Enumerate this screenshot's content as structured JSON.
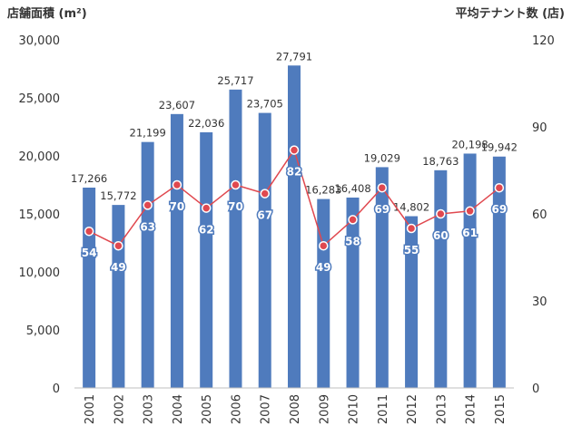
{
  "chart_data": {
    "type": "bar+line",
    "categories": [
      "2001",
      "2002",
      "2003",
      "2004",
      "2005",
      "2006",
      "2007",
      "2008",
      "2009",
      "2010",
      "2011",
      "2012",
      "2013",
      "2014",
      "2015"
    ],
    "series": [
      {
        "name": "店舗面積",
        "type": "bar",
        "axis": "left",
        "color": "#4f7bbd",
        "values": [
          17266,
          15772,
          21199,
          23607,
          22036,
          25717,
          23705,
          27791,
          16283,
          16408,
          19029,
          14802,
          18763,
          20198,
          19942
        ],
        "labels": [
          "17,266",
          "15,772",
          "21,199",
          "23,607",
          "22,036",
          "25,717",
          "23,705",
          "27,791",
          "16,283",
          "16,408",
          "19,029",
          "14,802",
          "18,763",
          "20,198",
          "19,942"
        ]
      },
      {
        "name": "平均テナント数",
        "type": "line",
        "axis": "right",
        "color": "#e0484f",
        "values": [
          54,
          49,
          63,
          70,
          62,
          70,
          67,
          82,
          49,
          58,
          69,
          55,
          60,
          61,
          69
        ]
      }
    ],
    "left_axis": {
      "title": "店舗面積 (m²)",
      "min": 0,
      "max": 30000,
      "ticks": [
        0,
        5000,
        10000,
        15000,
        20000,
        25000,
        30000
      ],
      "tick_labels": [
        "0",
        "5,000",
        "10,000",
        "15,000",
        "20,000",
        "25,000",
        "30,000"
      ]
    },
    "right_axis": {
      "title": "平均テナント数 (店)",
      "min": 0,
      "max": 120,
      "ticks": [
        0,
        30,
        60,
        90,
        120
      ],
      "tick_labels": [
        "0",
        "30",
        "60",
        "90",
        "120"
      ]
    },
    "grid": false
  }
}
